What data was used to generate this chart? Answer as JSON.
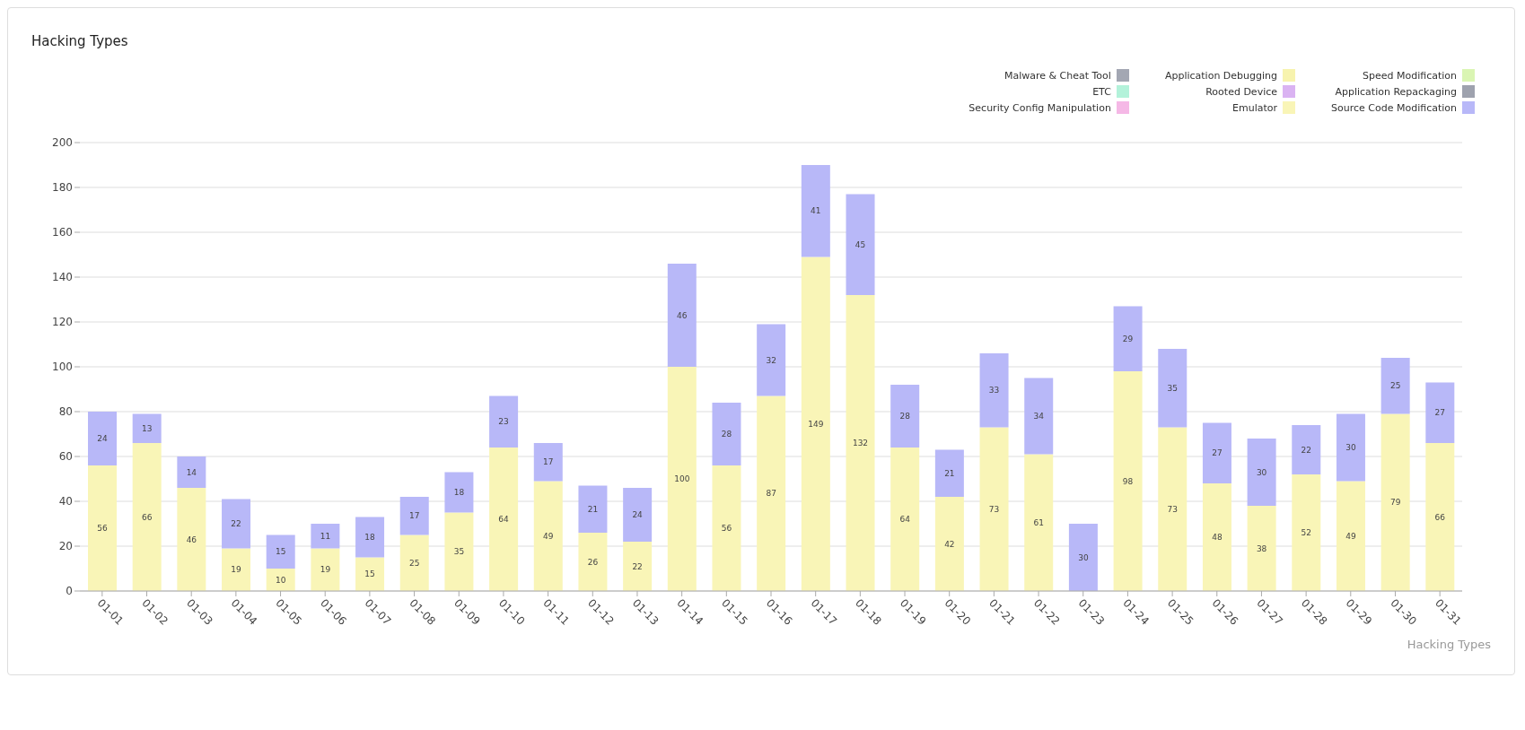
{
  "chart_data": {
    "type": "bar",
    "title": "Hacking Types",
    "stacked": true,
    "data_labels": true,
    "grid": "y",
    "legend": "top right",
    "categories": [
      "01-01",
      "01-02",
      "01-03",
      "01-04",
      "01-05",
      "01-06",
      "01-07",
      "01-08",
      "01-09",
      "01-10",
      "01-11",
      "01-12",
      "01-13",
      "01-14",
      "01-15",
      "01-16",
      "01-17",
      "01-18",
      "01-19",
      "01-20",
      "01-21",
      "01-22",
      "01-23",
      "01-24",
      "01-25",
      "01-26",
      "01-27",
      "01-28",
      "01-29",
      "01-30",
      "01-31"
    ],
    "ylim": [
      0,
      200
    ],
    "yticks": [
      0,
      20,
      40,
      60,
      80,
      100,
      120,
      140,
      160,
      180,
      200
    ],
    "annotations": [
      "Hacking Types"
    ],
    "series": [
      {
        "name": "Malware & Cheat Tool",
        "color": "#a3a7b3",
        "values": [
          null,
          null,
          null,
          null,
          null,
          null,
          null,
          null,
          null,
          null,
          null,
          null,
          null,
          null,
          null,
          null,
          null,
          null,
          null,
          null,
          null,
          null,
          null,
          null,
          null,
          null,
          null,
          null,
          null,
          null,
          null
        ]
      },
      {
        "name": "ETC",
        "color": "#b3f2da",
        "values": [
          null,
          null,
          null,
          null,
          null,
          null,
          null,
          null,
          null,
          null,
          null,
          null,
          null,
          null,
          null,
          null,
          null,
          null,
          null,
          null,
          null,
          null,
          null,
          null,
          null,
          null,
          null,
          null,
          null,
          null,
          null
        ]
      },
      {
        "name": "Security Config Manipulation",
        "color": "#f5b8e6",
        "values": [
          null,
          null,
          null,
          null,
          null,
          null,
          null,
          null,
          null,
          null,
          null,
          null,
          null,
          null,
          null,
          null,
          null,
          null,
          null,
          null,
          null,
          null,
          null,
          null,
          null,
          null,
          null,
          null,
          null,
          null,
          null
        ]
      },
      {
        "name": "Application Debugging",
        "color": "#f7f3ae",
        "values": [
          null,
          null,
          null,
          null,
          null,
          null,
          null,
          null,
          null,
          null,
          null,
          null,
          null,
          null,
          null,
          null,
          null,
          null,
          null,
          null,
          null,
          null,
          null,
          null,
          null,
          null,
          null,
          null,
          null,
          null,
          null
        ]
      },
      {
        "name": "Rooted Device",
        "color": "#dab3f2",
        "values": [
          null,
          null,
          null,
          null,
          null,
          null,
          null,
          null,
          null,
          null,
          null,
          null,
          null,
          null,
          null,
          null,
          null,
          null,
          null,
          null,
          null,
          null,
          null,
          null,
          null,
          null,
          null,
          null,
          null,
          null,
          null
        ]
      },
      {
        "name": "Emulator",
        "color": "#f9f5b7",
        "values": [
          56,
          66,
          46,
          19,
          10,
          19,
          15,
          25,
          35,
          64,
          49,
          26,
          22,
          100,
          56,
          87,
          149,
          132,
          64,
          42,
          73,
          61,
          null,
          98,
          73,
          48,
          38,
          52,
          49,
          79,
          66
        ]
      },
      {
        "name": "Speed Modification",
        "color": "#daf5b3",
        "values": [
          null,
          null,
          null,
          null,
          null,
          null,
          null,
          null,
          null,
          null,
          null,
          null,
          null,
          null,
          null,
          null,
          null,
          null,
          null,
          null,
          null,
          null,
          null,
          null,
          null,
          null,
          null,
          null,
          null,
          null,
          null
        ]
      },
      {
        "name": "Application Repackaging",
        "color": "#9ea2ae",
        "values": [
          null,
          null,
          null,
          null,
          null,
          null,
          null,
          null,
          null,
          null,
          null,
          null,
          null,
          null,
          null,
          null,
          null,
          null,
          null,
          null,
          null,
          null,
          null,
          null,
          null,
          null,
          null,
          null,
          null,
          null,
          null
        ]
      },
      {
        "name": "Source Code Modification",
        "color": "#b8b8f8",
        "values": [
          24,
          13,
          14,
          22,
          15,
          11,
          18,
          17,
          18,
          23,
          17,
          21,
          24,
          46,
          28,
          32,
          41,
          45,
          28,
          21,
          33,
          34,
          30,
          29,
          35,
          27,
          30,
          22,
          30,
          25,
          27
        ]
      }
    ]
  }
}
